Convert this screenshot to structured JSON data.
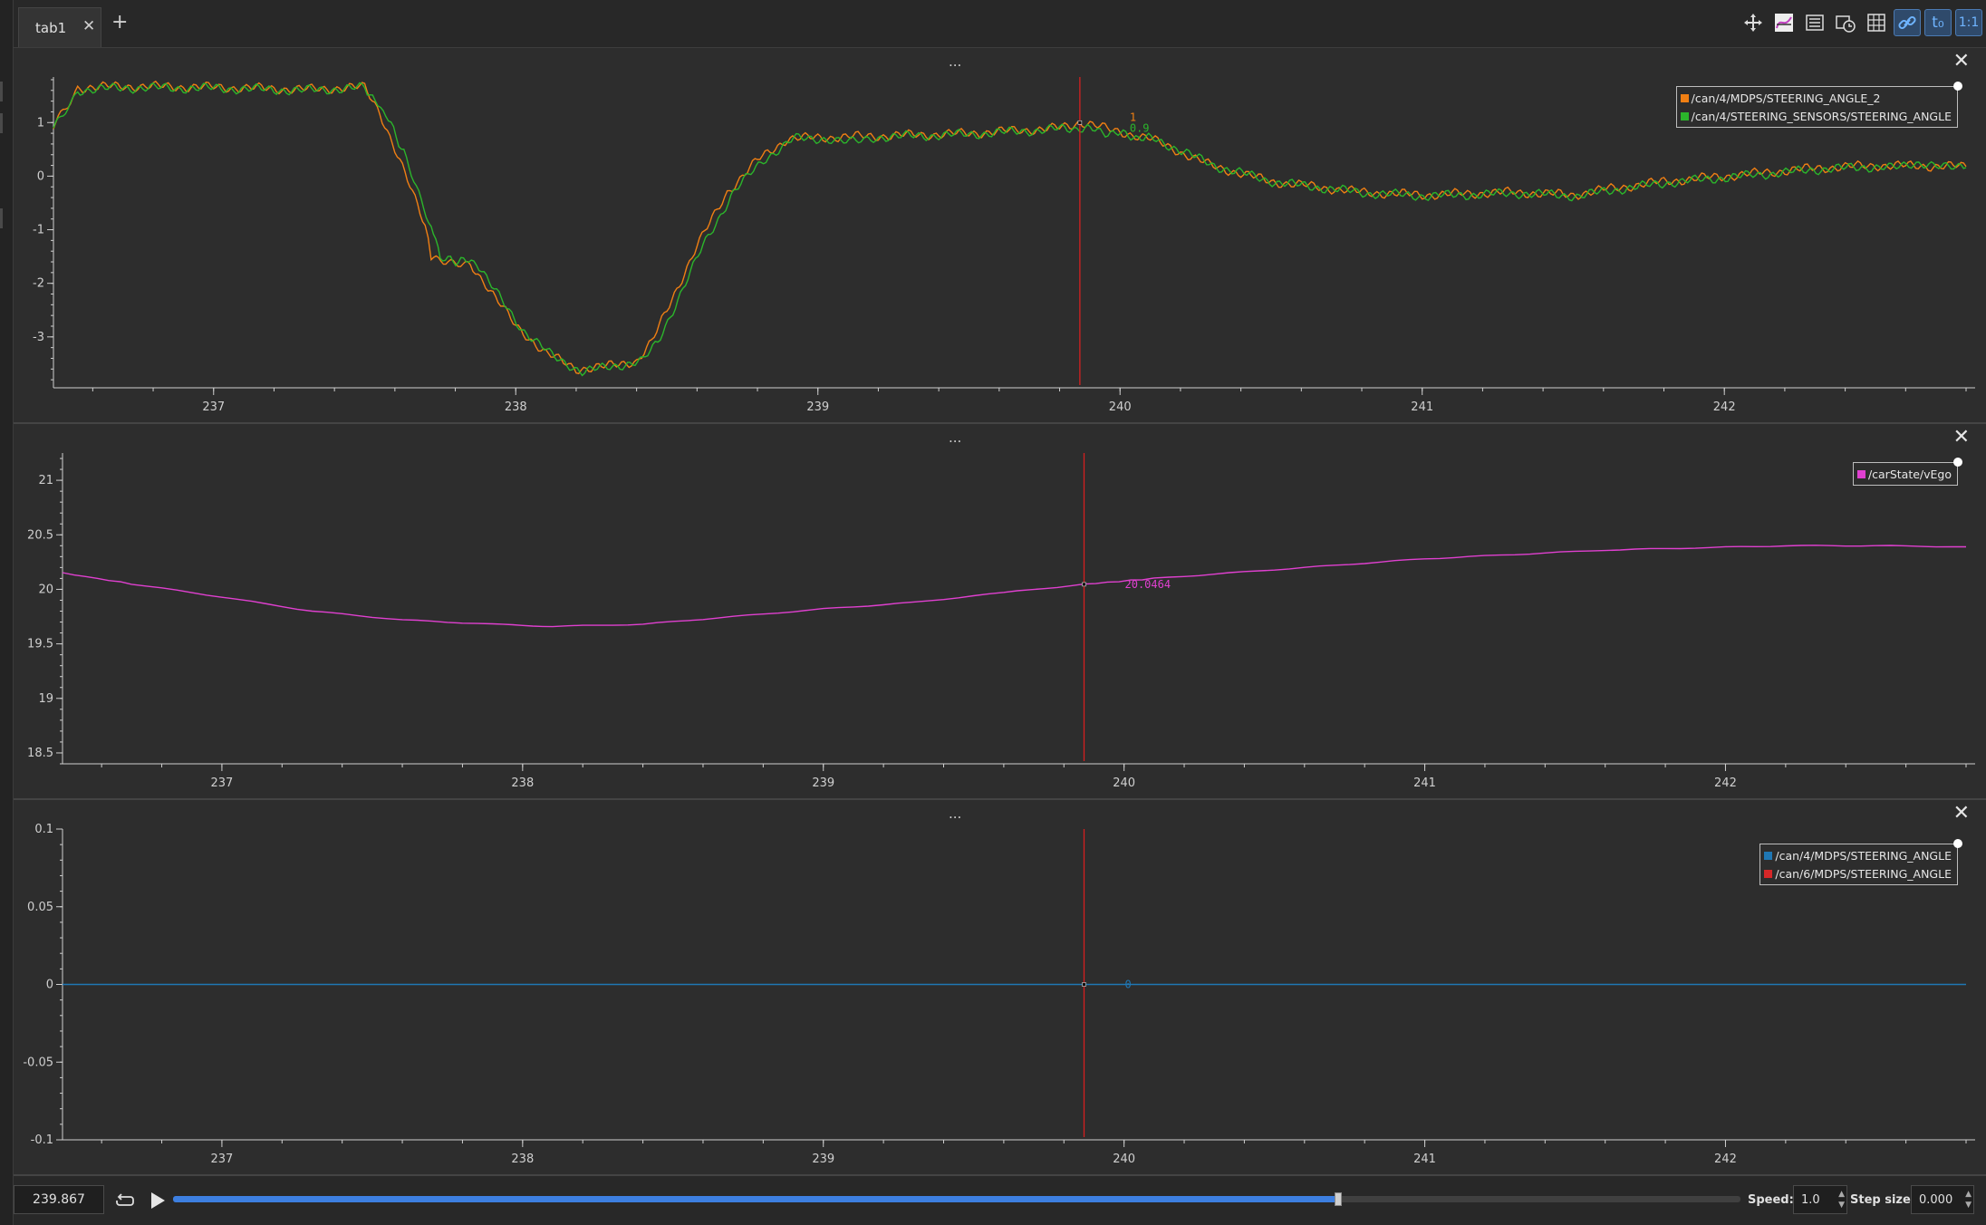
{
  "tabs": [
    {
      "label": "tab1"
    }
  ],
  "toolbar": {
    "buttons": [
      {
        "name": "pan-icon"
      },
      {
        "name": "edit-curves-icon"
      },
      {
        "name": "legend-list-icon"
      },
      {
        "name": "time-remap-icon"
      },
      {
        "name": "grid-icon"
      },
      {
        "name": "link-zoom-icon",
        "active": true
      },
      {
        "name": "relative-time-icon",
        "text": "t₀",
        "active": true
      },
      {
        "name": "ratio-icon",
        "text": "1:1",
        "active": true
      }
    ]
  },
  "plots": [
    {
      "title": "...",
      "cursor_x": 239.867,
      "cursor_values": [
        {
          "text": "1",
          "color": "#f07f13"
        },
        {
          "text": "0.9",
          "color": "#2bb52b"
        }
      ],
      "chart_data": {
        "type": "line",
        "xlim": [
          236.47,
          242.8
        ],
        "ylim": [
          -3.95,
          1.85
        ],
        "yticks": [
          1,
          0,
          -1,
          -2,
          -3
        ],
        "xticks": [
          237,
          238,
          239,
          240,
          241,
          242
        ],
        "series": [
          {
            "name": "/can/4/MDPS/STEERING_ANGLE_2",
            "color": "#f07f13",
            "x": [
              236.47,
              236.55,
              236.7,
              237.0,
              237.3,
              237.5,
              237.55,
              237.6,
              237.7,
              237.72,
              237.85,
              237.9,
              238.0,
              238.1,
              238.2,
              238.3,
              238.4,
              238.45,
              238.5,
              238.55,
              238.6,
              238.7,
              238.8,
              238.9,
              239.0,
              239.2,
              239.5,
              239.8,
              239.867,
              240.1,
              240.3,
              240.5,
              240.8,
              241.0,
              241.3,
              241.5,
              241.6,
              241.8,
              242.0,
              242.3,
              242.5,
              242.8
            ],
            "y": [
              0.9,
              1.65,
              1.68,
              1.66,
              1.62,
              1.66,
              1.2,
              0.5,
              -0.9,
              -1.5,
              -1.65,
              -2.0,
              -2.8,
              -3.3,
              -3.6,
              -3.55,
              -3.45,
              -3.1,
              -2.5,
              -1.9,
              -1.3,
              -0.3,
              0.3,
              0.7,
              0.72,
              0.75,
              0.8,
              0.9,
              1.0,
              0.7,
              0.2,
              -0.1,
              -0.3,
              -0.35,
              -0.3,
              -0.35,
              -0.25,
              -0.1,
              0.0,
              0.15,
              0.2,
              0.18
            ]
          },
          {
            "name": "/can/4/STEERING_SENSORS/STEERING_ANGLE",
            "color": "#2bb52b",
            "x": [
              236.47,
              236.55,
              236.7,
              237.0,
              237.3,
              237.5,
              237.57,
              237.63,
              237.72,
              237.75,
              237.87,
              237.92,
              238.02,
              238.12,
              238.22,
              238.32,
              238.42,
              238.47,
              238.52,
              238.57,
              238.62,
              238.72,
              238.82,
              238.92,
              239.02,
              239.2,
              239.5,
              239.8,
              239.867,
              240.12,
              240.32,
              240.52,
              240.82,
              241.02,
              241.32,
              241.52,
              241.62,
              241.82,
              242.02,
              242.32,
              242.52,
              242.8
            ],
            "y": [
              0.85,
              1.6,
              1.65,
              1.64,
              1.6,
              1.65,
              1.15,
              0.45,
              -0.95,
              -1.55,
              -1.6,
              -2.05,
              -2.85,
              -3.35,
              -3.65,
              -3.55,
              -3.45,
              -3.1,
              -2.5,
              -1.9,
              -1.3,
              -0.3,
              0.3,
              0.7,
              0.7,
              0.73,
              0.78,
              0.88,
              0.9,
              0.68,
              0.18,
              -0.12,
              -0.32,
              -0.37,
              -0.32,
              -0.37,
              -0.27,
              -0.12,
              -0.02,
              0.13,
              0.18,
              0.16
            ]
          }
        ]
      }
    },
    {
      "title": "...",
      "cursor_x": 239.867,
      "cursor_values": [
        {
          "text": "20.0464",
          "color": "#e040d0"
        }
      ],
      "chart_data": {
        "type": "line",
        "xlim": [
          236.47,
          242.8
        ],
        "ylim": [
          18.4,
          21.25
        ],
        "yticks": [
          21,
          20.5,
          20,
          19.5,
          19,
          18.5
        ],
        "xticks": [
          237,
          238,
          239,
          240,
          241,
          242
        ],
        "series": [
          {
            "name": "/carState/vEgo",
            "color": "#e040d0",
            "x": [
              236.47,
              236.7,
              237.0,
              237.3,
              237.6,
              237.9,
              238.1,
              238.4,
              238.7,
              239.0,
              239.3,
              239.6,
              239.867,
              240.1,
              240.4,
              240.7,
              241.0,
              241.3,
              241.6,
              241.9,
              242.2,
              242.5,
              242.8
            ],
            "y": [
              20.15,
              20.05,
              19.93,
              19.8,
              19.72,
              19.68,
              19.66,
              19.68,
              19.75,
              19.82,
              19.88,
              19.97,
              20.046,
              20.1,
              20.16,
              20.22,
              20.28,
              20.32,
              20.36,
              20.38,
              20.4,
              20.4,
              20.39
            ]
          }
        ]
      }
    },
    {
      "title": "...",
      "cursor_x": 239.867,
      "cursor_values": [
        {
          "text": "0",
          "color": "#1f77b4"
        }
      ],
      "chart_data": {
        "type": "line",
        "xlim": [
          236.47,
          242.8
        ],
        "ylim": [
          -0.1,
          0.1
        ],
        "yticks": [
          0.1,
          0.05,
          0,
          -0.05,
          -0.1
        ],
        "xticks": [
          237,
          238,
          239,
          240,
          241,
          242
        ],
        "series": [
          {
            "name": "/can/4/MDPS/STEERING_ANGLE",
            "color": "#1f77b4",
            "x": [
              236.47,
              242.8
            ],
            "y": [
              0,
              0
            ]
          },
          {
            "name": "/can/6/MDPS/STEERING_ANGLE",
            "color": "#d62728",
            "x": [],
            "y": []
          }
        ]
      }
    }
  ],
  "bottom": {
    "time_value": "239.867",
    "progress": 0.7435,
    "speed_label": "Speed:",
    "speed_value": "1.0",
    "step_label": "Step size:",
    "step_value": "0.000"
  }
}
